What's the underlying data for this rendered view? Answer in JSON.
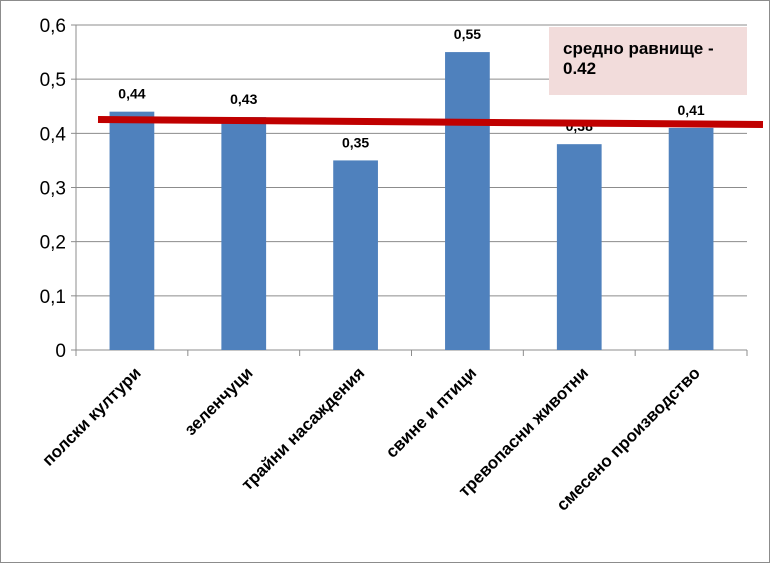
{
  "chart_data": {
    "type": "bar",
    "categories": [
      "полски култури",
      "зеленчуци",
      "трайни насаждения",
      "свине и птици",
      "тревопасни животни",
      "смесено производство"
    ],
    "values": [
      0.44,
      0.43,
      0.35,
      0.55,
      0.38,
      0.41
    ],
    "data_labels": [
      "0,44",
      "0,43",
      "0,35",
      "0,55",
      "0,38",
      "0,41"
    ],
    "y_ticks": [
      0,
      0.1,
      0.2,
      0.3,
      0.4,
      0.5,
      0.6
    ],
    "y_tick_labels": [
      "0",
      "0,1",
      "0,2",
      "0,3",
      "0,4",
      "0,5",
      "0,6"
    ],
    "ylim": [
      0,
      0.6
    ],
    "title": "",
    "xlabel": "",
    "ylabel": "",
    "grid": true,
    "average": {
      "value": 0.42,
      "label": "средно равнище - 0.42"
    },
    "colors": {
      "bar": "#4f81bd",
      "average_line": "#c00000",
      "grid": "#8c8c8c",
      "annotation_bg": "#f2dcdb"
    }
  }
}
